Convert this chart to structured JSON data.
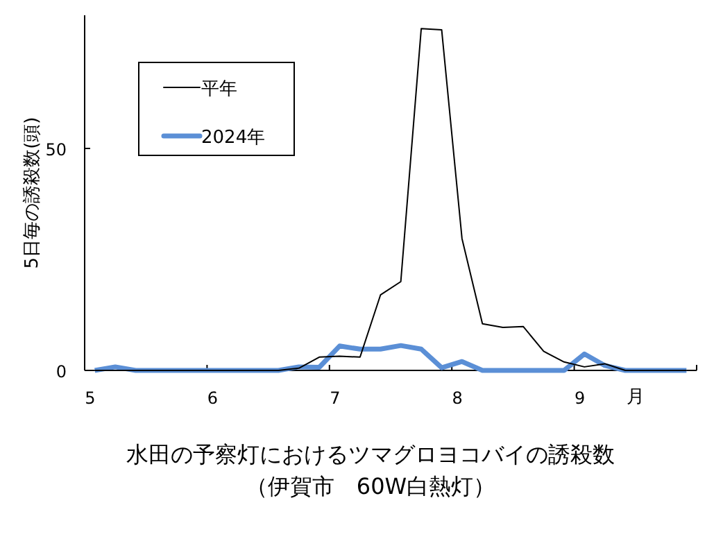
{
  "chart_data": {
    "type": "line",
    "title": "水田の予察灯におけるツマグロヨコバイの誘殺数",
    "subtitle": "（伊賀市　60W白熱灯）",
    "ylabel": "5日毎の誘殺数(頭)",
    "xlabel": "月",
    "x": [
      5.083,
      5.25,
      5.417,
      5.583,
      5.75,
      5.917,
      6.083,
      6.25,
      6.417,
      6.583,
      6.75,
      6.917,
      7.083,
      7.25,
      7.417,
      7.583,
      7.75,
      7.917,
      8.083,
      8.25,
      8.417,
      8.583,
      8.75,
      8.917,
      9.083,
      9.25,
      9.417,
      9.583,
      9.75,
      9.917
    ],
    "series": [
      {
        "name": "平年",
        "color": "#000000",
        "values": [
          0,
          0,
          0,
          0,
          0,
          0,
          0,
          0,
          0,
          0,
          0.5,
          3,
          3.2,
          3,
          17,
          20,
          77,
          76.7,
          29.7,
          10.5,
          9.7,
          9.9,
          4.3,
          1.9,
          0.8,
          1.5,
          0,
          0,
          0,
          0
        ]
      },
      {
        "name": "2024年",
        "color": "#5b8fd6",
        "values": [
          0,
          0.8,
          0,
          0,
          0,
          0,
          0,
          0,
          0,
          0,
          0.8,
          0.7,
          5.5,
          4.8,
          4.8,
          5.6,
          4.8,
          0.6,
          2,
          0,
          0,
          0,
          0,
          0,
          3.7,
          1.1,
          0,
          0,
          0,
          0
        ]
      }
    ],
    "xlim": [
      5,
      10
    ],
    "xticks": [
      5,
      6,
      7,
      8,
      9,
      {
        "value": 10,
        "label": null
      }
    ],
    "ylim": [
      0,
      80
    ],
    "yticks": [
      0,
      50
    ],
    "grid": false,
    "legend": "top left",
    "marker": "none",
    "line_style": "solid"
  }
}
